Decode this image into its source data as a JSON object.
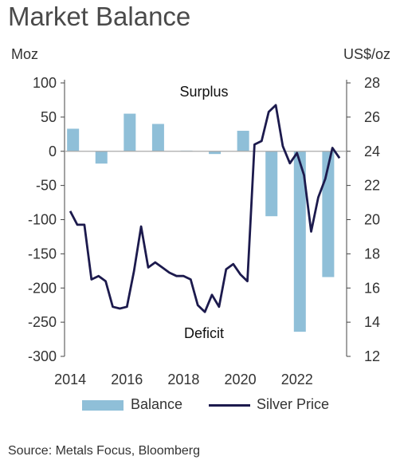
{
  "title": "Market Balance",
  "left_unit": "Moz",
  "right_unit": "US$/oz",
  "source": "Source: Metals Focus, Bloomberg",
  "colors": {
    "bar": "#8fbfd8",
    "line": "#1c1a4d",
    "zero": "#a9a9a9",
    "axis": "#444444"
  },
  "chart_data": {
    "type": "bar",
    "y_left": {
      "label": "Moz",
      "lim": [
        -300,
        100
      ],
      "ticks": [
        100,
        50,
        0,
        -50,
        -100,
        -150,
        -200,
        -250,
        -300
      ]
    },
    "y_right": {
      "label": "US$/oz",
      "lim": [
        12,
        28
      ],
      "ticks": [
        28,
        26,
        24,
        22,
        20,
        18,
        16,
        14,
        12
      ]
    },
    "x_ticks": [
      "2014",
      "2016",
      "2018",
      "2020",
      "2022"
    ],
    "annotations": [
      "Surplus",
      "Deficit"
    ],
    "series": [
      {
        "name": "Balance",
        "type": "bar",
        "axis": "left",
        "categories": [
          "2014",
          "2015",
          "2016",
          "2017",
          "2018",
          "2019",
          "2020",
          "2021",
          "2022",
          "2023"
        ],
        "values": [
          33,
          -18,
          55,
          40,
          1,
          -4,
          30,
          -95,
          -264,
          -184
        ]
      },
      {
        "name": "Silver Price",
        "type": "line",
        "axis": "right",
        "x": [
          2014.0,
          2014.25,
          2014.5,
          2014.75,
          2015.0,
          2015.25,
          2015.5,
          2015.75,
          2016.0,
          2016.25,
          2016.5,
          2016.75,
          2017.0,
          2017.25,
          2017.5,
          2017.75,
          2018.0,
          2018.25,
          2018.5,
          2018.75,
          2019.0,
          2019.25,
          2019.5,
          2019.75,
          2020.0,
          2020.25,
          2020.5,
          2020.75,
          2021.0,
          2021.25,
          2021.5,
          2021.75,
          2022.0,
          2022.25,
          2022.5,
          2022.75,
          2023.0,
          2023.25,
          2023.5
        ],
        "y": [
          20.5,
          19.7,
          19.7,
          16.5,
          16.7,
          16.4,
          14.9,
          14.8,
          14.9,
          17.0,
          19.6,
          17.2,
          17.5,
          17.2,
          16.9,
          16.7,
          16.7,
          16.5,
          15.0,
          14.6,
          15.6,
          14.9,
          17.1,
          17.4,
          16.8,
          16.4,
          24.4,
          24.6,
          26.3,
          26.7,
          24.3,
          23.3,
          23.9,
          22.6,
          19.3,
          21.3,
          22.4,
          24.2,
          23.6
        ]
      }
    ]
  }
}
